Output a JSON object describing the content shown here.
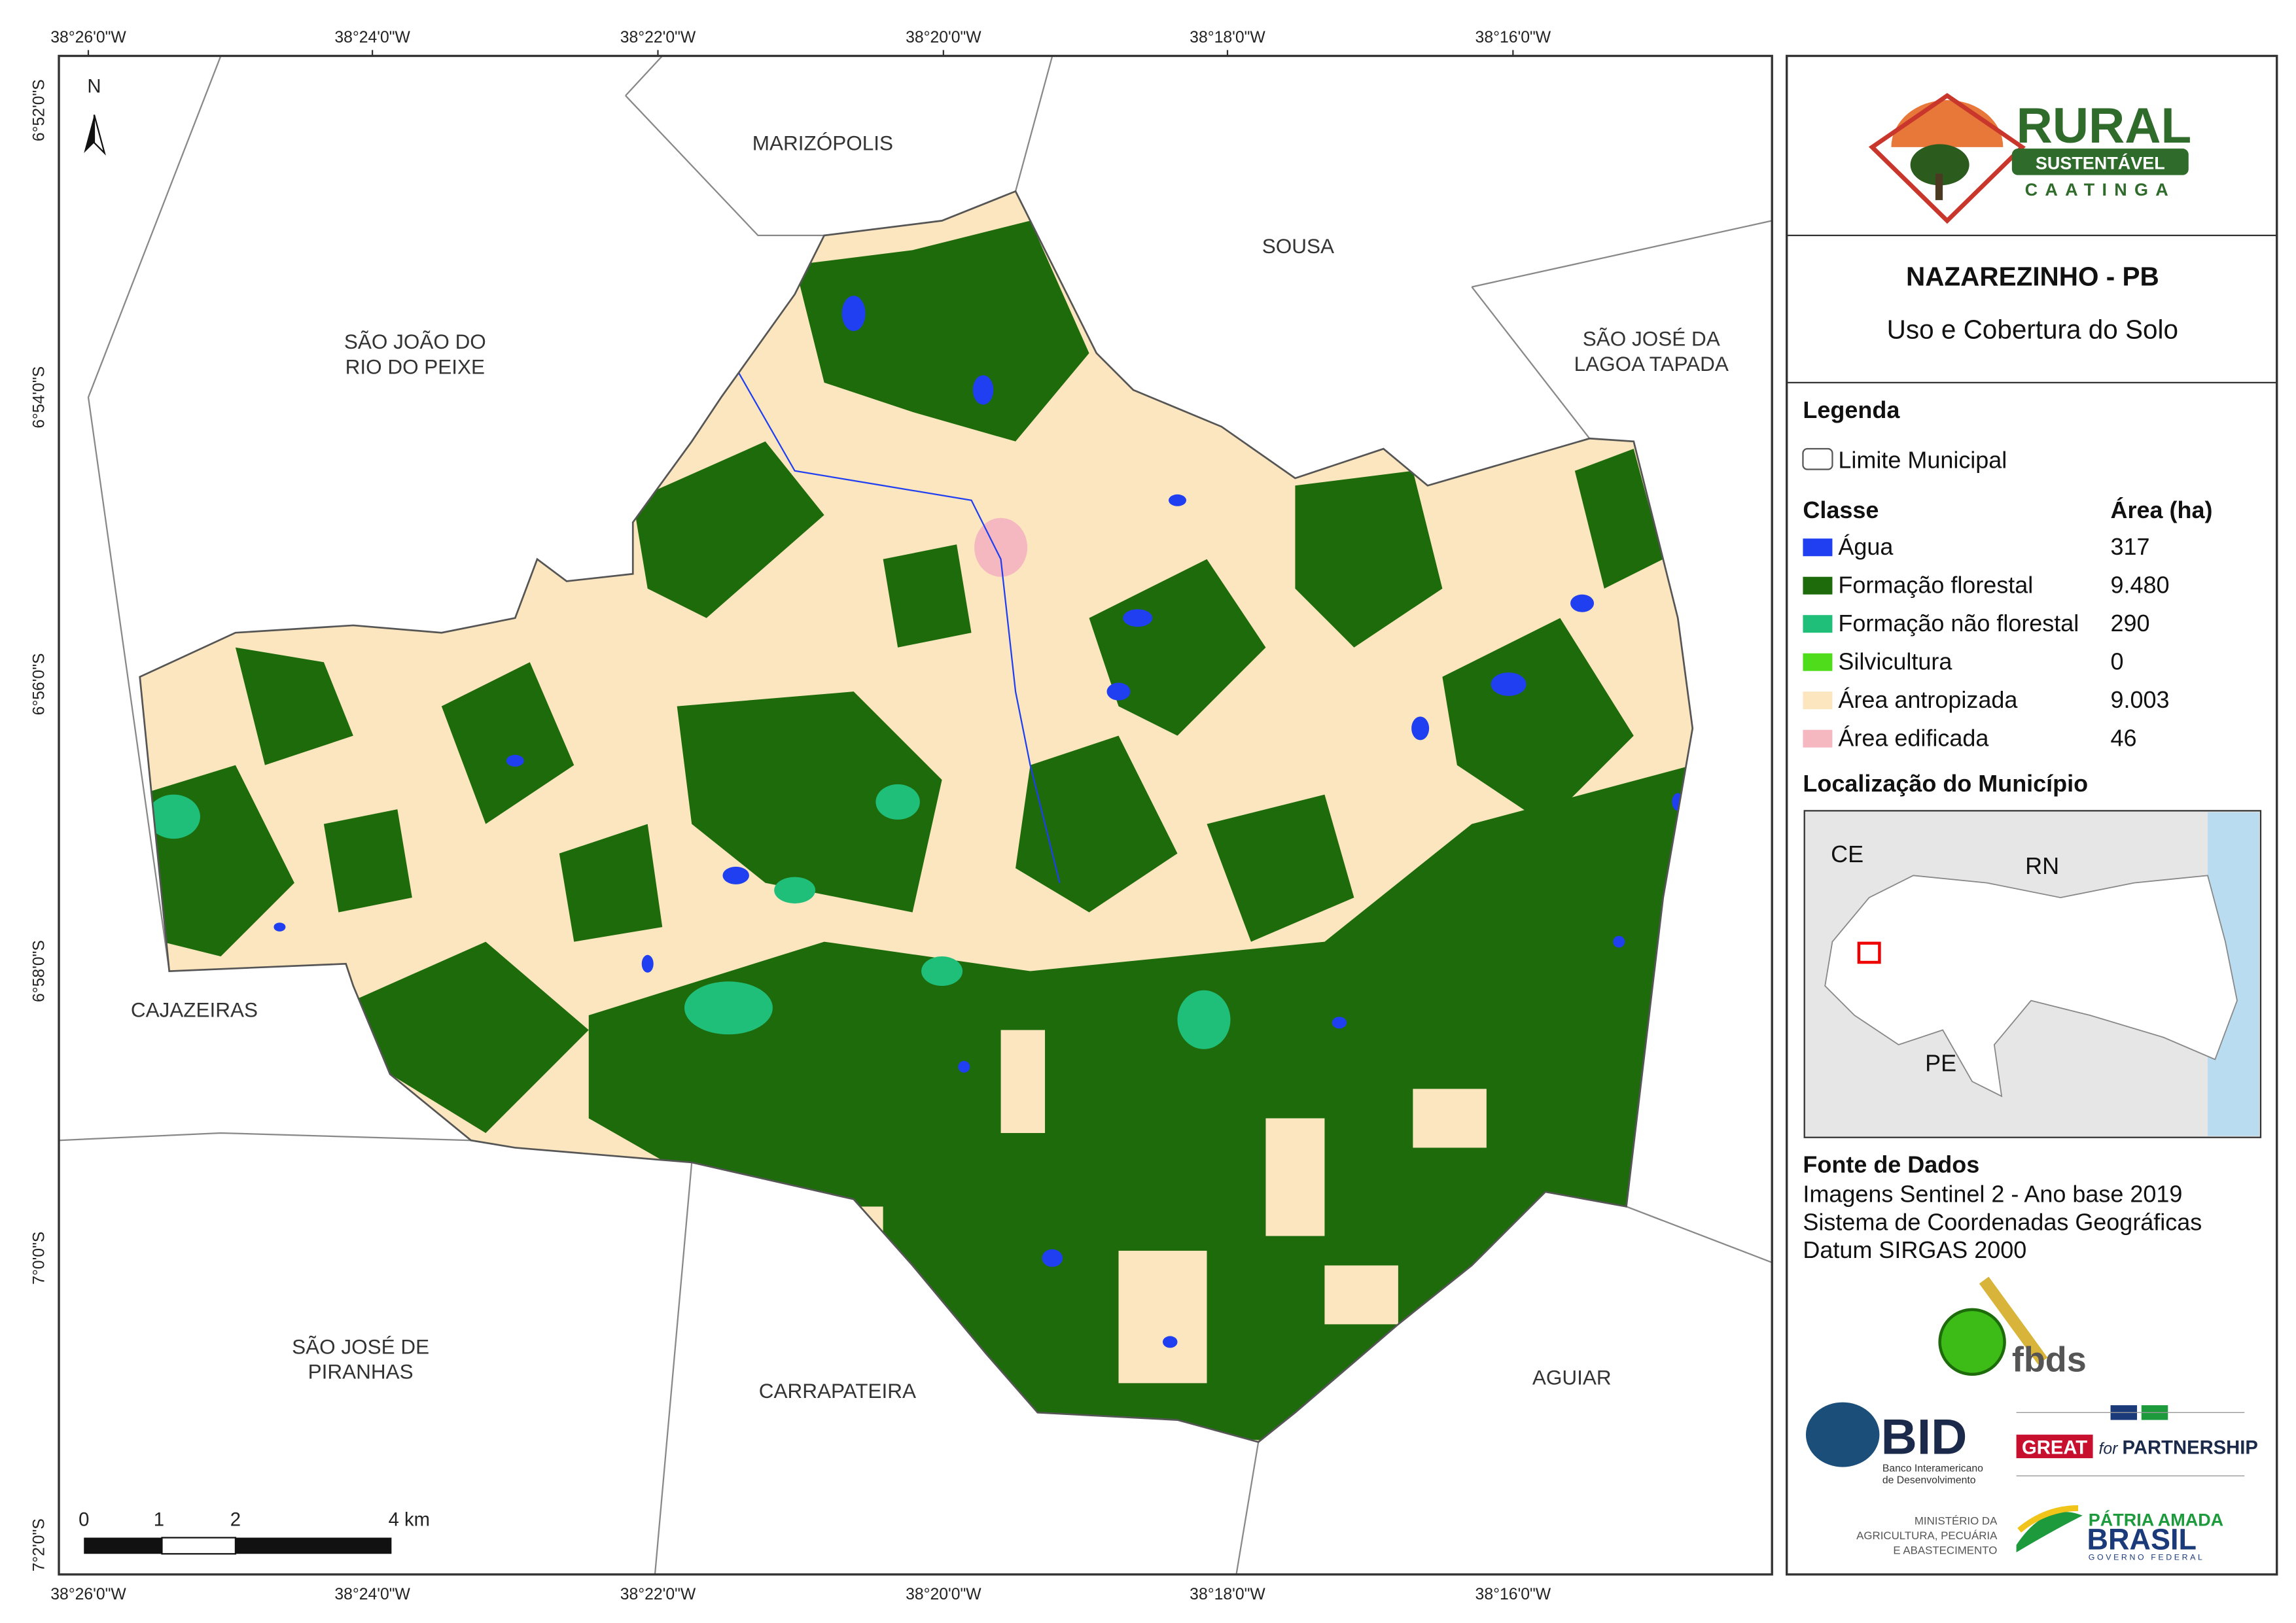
{
  "map": {
    "lon_labels": [
      "38°26'0\"W",
      "38°24'0\"W",
      "38°22'0\"W",
      "38°20'0\"W",
      "38°18'0\"W",
      "38°16'0\"W"
    ],
    "lat_labels": [
      "6°52'0\"S",
      "6°54'0\"S",
      "6°56'0\"S",
      "6°58'0\"S",
      "7°0'0\"S",
      "7°2'0\"S"
    ],
    "north": "N",
    "places": [
      {
        "lines": [
          "MARIZÓPOLIS"
        ]
      },
      {
        "lines": [
          "SOUSA"
        ]
      },
      {
        "lines": [
          "SÃO JOÃO DO",
          "RIO DO PEIXE"
        ]
      },
      {
        "lines": [
          "SÃO JOSÉ DA",
          "LAGOA TAPADA"
        ]
      },
      {
        "lines": [
          "CAJAZEIRAS"
        ]
      },
      {
        "lines": [
          "SÃO JOSÉ DE",
          "PIRANHAS"
        ]
      },
      {
        "lines": [
          "CARRAPATEIRA"
        ]
      },
      {
        "lines": [
          "AGUIAR"
        ]
      }
    ],
    "scale": [
      "0",
      "1",
      "2",
      "4 km"
    ]
  },
  "logo": {
    "title": "RURAL",
    "band": "SUSTENTÁVEL",
    "tag": "CAATINGA"
  },
  "header": {
    "title": "NAZAREZINHO - PB",
    "subtitle": "Uso e Cobertura do Solo"
  },
  "legend": {
    "title": "Legenda",
    "boundary": "Limite Municipal",
    "class_header": "Classe",
    "area_header": "Área (ha)",
    "classes": [
      {
        "name": "Água",
        "color": "#1f3ff0",
        "area": "317"
      },
      {
        "name": "Formação florestal",
        "color": "#1e6b0c",
        "area": "9.480"
      },
      {
        "name": "Formação não florestal",
        "color": "#1fbf7a",
        "area": "290"
      },
      {
        "name": "Silvicultura",
        "color": "#4fdc1a",
        "area": "0"
      },
      {
        "name": "Área antropizada",
        "color": "#fbe6bf",
        "area": "9.003"
      },
      {
        "name": "Área edificada",
        "color": "#f6b8c0",
        "area": "46"
      }
    ]
  },
  "location": {
    "title": "Localização do Município",
    "labels": [
      "CE",
      "RN",
      "PE"
    ]
  },
  "sources": {
    "title": "Fonte de Dados",
    "lines": [
      "Imagens Sentinel 2 - Ano base 2019",
      "Sistema de Coordenadas Geográficas",
      "Datum SIRGAS 2000"
    ]
  },
  "partners": {
    "fbds": "fbds",
    "bid": "BID",
    "bid_name": [
      "Banco Interamericano",
      "de Desenvolvimento"
    ],
    "great": "GREAT",
    "for": "for",
    "partnership": "PARTNERSHIP",
    "ministry": [
      "MINISTÉRIO DA",
      "AGRICULTURA, PECUÁRIA",
      "E ABASTECIMENTO"
    ],
    "patria": "PÁTRIA AMADA",
    "brasil": "BRASIL",
    "gov": "GOVERNO FEDERAL"
  }
}
